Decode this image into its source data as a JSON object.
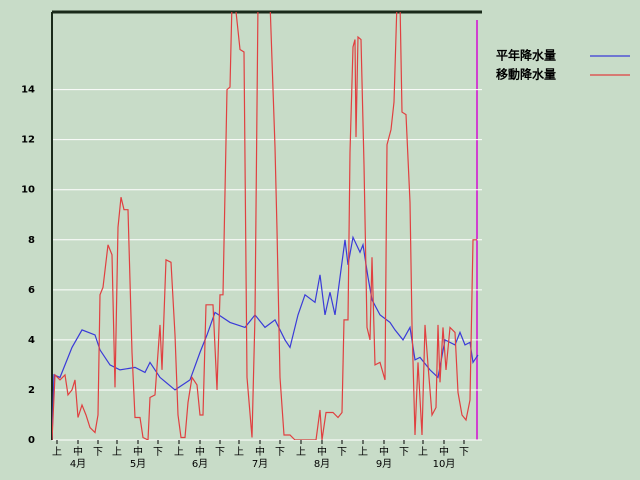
{
  "chart_data": {
    "type": "line",
    "xlim": [
      0,
      215
    ],
    "ylim": [
      0,
      17.1
    ],
    "yticks": [
      0,
      2,
      4,
      6,
      8,
      10,
      12,
      14
    ],
    "grid": true,
    "legend": "top-right",
    "xticks": [
      {
        "value": 2.5,
        "label": "上"
      },
      {
        "value": 13,
        "label": "中"
      },
      {
        "value": 23,
        "label": "下"
      },
      {
        "value": 32.5,
        "label": "上"
      },
      {
        "value": 43,
        "label": "中"
      },
      {
        "value": 53,
        "label": "下"
      },
      {
        "value": 63.5,
        "label": "上"
      },
      {
        "value": 74,
        "label": "中"
      },
      {
        "value": 84,
        "label": "下"
      },
      {
        "value": 93.5,
        "label": "上"
      },
      {
        "value": 104,
        "label": "中"
      },
      {
        "value": 114,
        "label": "下"
      },
      {
        "value": 124.5,
        "label": "上"
      },
      {
        "value": 135,
        "label": "中"
      },
      {
        "value": 145,
        "label": "下"
      },
      {
        "value": 155.5,
        "label": "上"
      },
      {
        "value": 166,
        "label": "中"
      },
      {
        "value": 176,
        "label": "下"
      },
      {
        "value": 185.5,
        "label": "上"
      },
      {
        "value": 196,
        "label": "中"
      },
      {
        "value": 206,
        "label": "下"
      }
    ],
    "months": [
      {
        "value": 13,
        "label": "4月"
      },
      {
        "value": 43,
        "label": "5月"
      },
      {
        "value": 74,
        "label": "6月"
      },
      {
        "value": 104,
        "label": "7月"
      },
      {
        "value": 135,
        "label": "8月"
      },
      {
        "value": 166,
        "label": "9月"
      },
      {
        "value": 196,
        "label": "10月"
      }
    ],
    "series": [
      {
        "name": "平年降水量",
        "color": "#3a3ad8",
        "x": [
          0,
          1,
          4,
          10,
          15,
          21.5,
          24,
          29,
          34,
          41.5,
          46.5,
          49,
          54,
          61.5,
          69,
          74,
          77.5,
          81.5,
          89,
          96.5,
          101.5,
          106.5,
          111.5,
          116.5,
          119,
          123,
          126.5,
          131.5,
          134,
          136.5,
          139,
          141.5,
          144,
          146.5,
          148,
          150.5,
          154,
          155.5,
          158,
          160,
          164,
          169,
          171.5,
          175.5,
          179,
          181.5,
          184,
          189,
          193,
          196.5,
          201.5,
          204,
          206.5,
          209,
          210.5,
          213
        ],
        "values": [
          0,
          2.6,
          2.5,
          3.7,
          4.4,
          4.2,
          3.6,
          3.0,
          2.8,
          2.9,
          2.7,
          3.1,
          2.5,
          2.0,
          2.4,
          3.5,
          4.2,
          5.1,
          4.7,
          4.5,
          5.0,
          4.5,
          4.8,
          4.0,
          3.7,
          5.0,
          5.8,
          5.5,
          6.6,
          5.0,
          5.9,
          5.0,
          6.5,
          8.0,
          7.0,
          8.1,
          7.5,
          7.8,
          6.5,
          5.6,
          5.0,
          4.7,
          4.4,
          4.0,
          4.5,
          3.2,
          3.3,
          2.8,
          2.5,
          4.0,
          3.8,
          4.3,
          3.8,
          3.9,
          3.1,
          3.4
        ]
      },
      {
        "name": "移動降水量",
        "color": "#e04040",
        "x": [
          0,
          1.5,
          4,
          6.5,
          8,
          10,
          11.5,
          13,
          15,
          17,
          19,
          21.5,
          23,
          24,
          25.5,
          28,
          30,
          31.5,
          33,
          34.5,
          36,
          38,
          40,
          41.5,
          44,
          45.5,
          48,
          49,
          51.5,
          54,
          55,
          57,
          59.5,
          61.5,
          63,
          64.5,
          66.5,
          68,
          70,
          72.5,
          74,
          75.5,
          77,
          80.5,
          82.5,
          84,
          85.5,
          87.5,
          89,
          90,
          91.5,
          94,
          96,
          97.5,
          100,
          101.5,
          103,
          105,
          109,
          111.5,
          112.5,
          114,
          116,
          119,
          121.5,
          129,
          132,
          134,
          135,
          137,
          140.5,
          143,
          145,
          146,
          148,
          149,
          150.5,
          151.5,
          152,
          153,
          154.5,
          156,
          157.5,
          159,
          160,
          161.5,
          164,
          166.5,
          167.5,
          169.5,
          171,
          172.5,
          174,
          175,
          177,
          179,
          180,
          181.5,
          183,
          185,
          186.5,
          188,
          190,
          192,
          193,
          194,
          195.5,
          197,
          199,
          201.5,
          203,
          205,
          207,
          209,
          210.5,
          212.5
        ],
        "values": [
          0,
          2.6,
          2.4,
          2.6,
          1.8,
          2.0,
          2.4,
          0.9,
          1.4,
          1.0,
          0.5,
          0.3,
          1.0,
          5.8,
          6.1,
          7.8,
          7.4,
          2.1,
          8.5,
          9.7,
          9.2,
          9.2,
          3.5,
          0.9,
          0.9,
          0.1,
          0,
          1.7,
          1.8,
          4.6,
          2.8,
          7.2,
          7.1,
          4.2,
          1.0,
          0.1,
          0.1,
          1.5,
          2.5,
          2.2,
          1.0,
          1.0,
          5.4,
          5.4,
          2.0,
          5.8,
          5.8,
          14.0,
          14.1,
          17.5,
          17.5,
          15.6,
          15.5,
          2.5,
          0.1,
          5.0,
          17.5,
          17.5,
          17.5,
          11.7,
          8.4,
          2.5,
          0.2,
          0.2,
          0,
          0,
          0,
          1.2,
          0,
          1.1,
          1.1,
          0.9,
          1.1,
          4.8,
          4.8,
          11.5,
          15.7,
          16.0,
          12.1,
          16.1,
          16.0,
          11.0,
          4.5,
          4.0,
          7.3,
          3.0,
          3.1,
          2.4,
          11.8,
          12.4,
          13.5,
          17.5,
          17.5,
          13.1,
          13.0,
          9.5,
          4.6,
          0.2,
          3.1,
          0.2,
          4.6,
          3.0,
          1.0,
          1.3,
          4.6,
          2.3,
          4.5,
          2.8,
          4.5,
          4.3,
          1.9,
          1.0,
          0.8,
          1.6,
          8.0,
          8.0
        ]
      }
    ]
  }
}
